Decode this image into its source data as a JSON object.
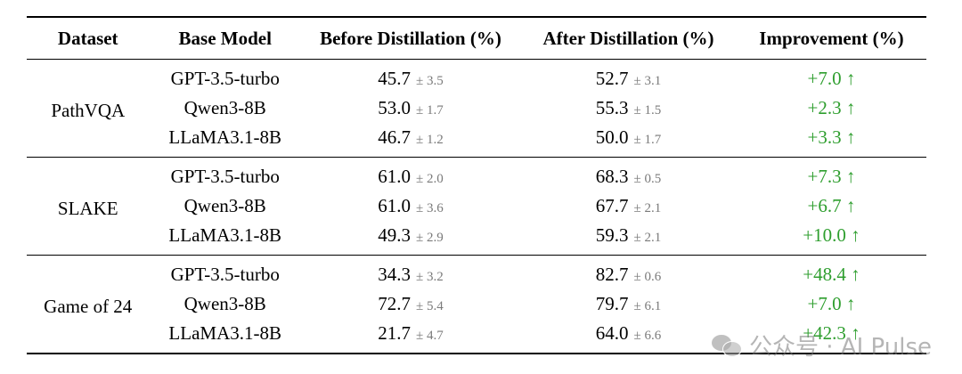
{
  "table": {
    "headers": {
      "dataset": "Dataset",
      "base_model": "Base Model",
      "before": "Before Distillation (%)",
      "after": "After Distillation (%)",
      "improvement": "Improvement (%)"
    },
    "groups": [
      {
        "dataset": "PathVQA",
        "rows": [
          {
            "model": "GPT-3.5-turbo",
            "before": "45.7",
            "before_std": "± 3.5",
            "after": "52.7",
            "after_std": "± 3.1",
            "improvement": "+7.0 ↑"
          },
          {
            "model": "Qwen3-8B",
            "before": "53.0",
            "before_std": "± 1.7",
            "after": "55.3",
            "after_std": "± 1.5",
            "improvement": "+2.3 ↑"
          },
          {
            "model": "LLaMA3.1-8B",
            "before": "46.7",
            "before_std": "± 1.2",
            "after": "50.0",
            "after_std": "± 1.7",
            "improvement": "+3.3 ↑"
          }
        ]
      },
      {
        "dataset": "SLAKE",
        "rows": [
          {
            "model": "GPT-3.5-turbo",
            "before": "61.0",
            "before_std": "± 2.0",
            "after": "68.3",
            "after_std": "± 0.5",
            "improvement": "+7.3 ↑"
          },
          {
            "model": "Qwen3-8B",
            "before": "61.0",
            "before_std": "± 3.6",
            "after": "67.7",
            "after_std": "± 2.1",
            "improvement": "+6.7 ↑"
          },
          {
            "model": "LLaMA3.1-8B",
            "before": "49.3",
            "before_std": "± 2.9",
            "after": "59.3",
            "after_std": "± 2.1",
            "improvement": "+10.0 ↑"
          }
        ]
      },
      {
        "dataset": "Game of 24",
        "rows": [
          {
            "model": "GPT-3.5-turbo",
            "before": "34.3",
            "before_std": "± 3.2",
            "after": "82.7",
            "after_std": "± 0.6",
            "improvement": "+48.4 ↑"
          },
          {
            "model": "Qwen3-8B",
            "before": "72.7",
            "before_std": "± 5.4",
            "after": "79.7",
            "after_std": "± 6.1",
            "improvement": "+7.0 ↑"
          },
          {
            "model": "LLaMA3.1-8B",
            "before": "21.7",
            "before_std": "± 4.7",
            "after": "64.0",
            "after_std": "± 6.6",
            "improvement": "+42.3 ↑"
          }
        ]
      }
    ]
  },
  "watermark": {
    "text": "公众号 · AI Pulse",
    "icon": "wechat-icon"
  },
  "colors": {
    "improvement": "#2e9e2e",
    "std": "#7a7a7a"
  }
}
